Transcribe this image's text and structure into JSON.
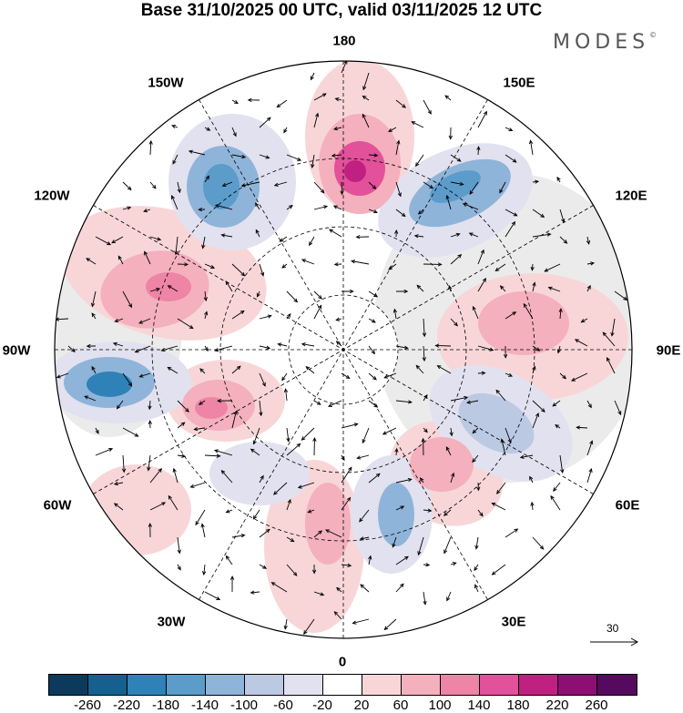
{
  "title": "Base 31/10/2025 00 UTC, valid 03/11/2025 12 UTC",
  "brand": "MODES",
  "brand_mark": "©",
  "longitude_labels": {
    "lon_180": "180",
    "lon_150e": "150E",
    "lon_120e": "120E",
    "lon_90e": "90E",
    "lon_60e": "60E",
    "lon_30e": "30E",
    "lon_0": "0",
    "lon_30w": "30W",
    "lon_60w": "60W",
    "lon_90w": "90W",
    "lon_120w": "120W",
    "lon_150w": "150W"
  },
  "reference_vector": {
    "value": "30"
  },
  "colorbar": {
    "colors": [
      "#0b3a5c",
      "#15608f",
      "#2f82b7",
      "#5b9ccb",
      "#8fb4d9",
      "#bcc9e3",
      "#e2e1ef",
      "#ffffff",
      "#f8d6d8",
      "#f4b0bd",
      "#ee84a6",
      "#e2519a",
      "#c0207f",
      "#8d0f73",
      "#560a5f"
    ],
    "ticks": [
      "-260",
      "-220",
      "-180",
      "-140",
      "-100",
      "-60",
      "-20",
      "20",
      "60",
      "100",
      "140",
      "180",
      "220",
      "260"
    ]
  }
}
